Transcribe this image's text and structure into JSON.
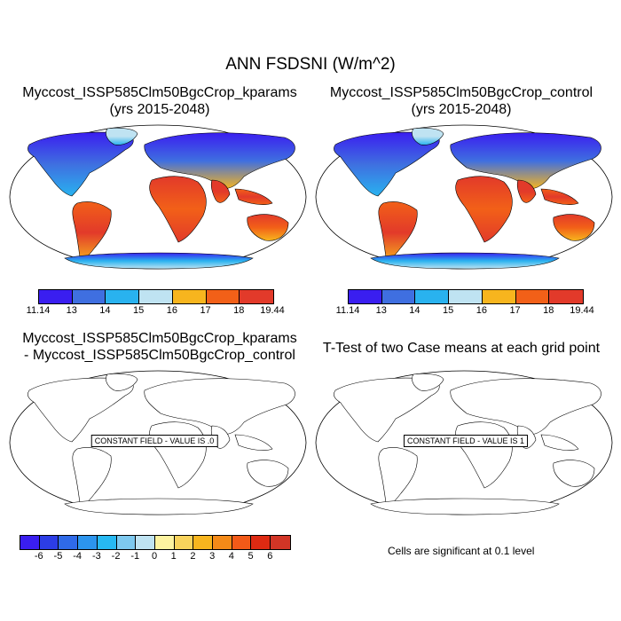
{
  "main_title": "ANN FSDSNI (W/m^2)",
  "panels": {
    "top_left": {
      "title_line1": "Myccost_ISSP585Clm50BgcCrop_kparams",
      "title_line2": "(yrs 2015-2048)"
    },
    "top_right": {
      "title_line1": "Myccost_ISSP585Clm50BgcCrop_control",
      "title_line2": "(yrs 2015-2048)"
    },
    "bottom_left": {
      "title_line1": "Myccost_ISSP585Clm50BgcCrop_kparams",
      "title_line2": "- Myccost_ISSP585Clm50BgcCrop_control",
      "field_label": "CONSTANT FIELD - VALUE IS .0"
    },
    "bottom_right": {
      "title_line1": "T-Test of two Case means at each grid point",
      "field_label": "CONSTANT FIELD - VALUE IS 1",
      "note": "Cells are significant at 0.1 level"
    }
  },
  "colorbar_top": {
    "labels": [
      "11.14",
      "13",
      "14",
      "15",
      "16",
      "17",
      "18",
      "19.44"
    ],
    "colors": [
      "#3a1ef0",
      "#3f6fe0",
      "#29b2ef",
      "#bfe3f2",
      "#f7b51e",
      "#f26018",
      "#e23a2a"
    ]
  },
  "colorbar_diff": {
    "labels": [
      "-6",
      "-5",
      "-4",
      "-3",
      "-2",
      "-1",
      "0",
      "1",
      "2",
      "3",
      "4",
      "5",
      "6"
    ],
    "colors": [
      "#3a1ef0",
      "#2c3de6",
      "#2f6ae8",
      "#2c95ee",
      "#27b9f2",
      "#7ec9ef",
      "#bfe3f2",
      "#fdf3a0",
      "#f8d35c",
      "#f7b51e",
      "#f48a18",
      "#f25a18",
      "#de2a12",
      "#d23526"
    ]
  }
}
